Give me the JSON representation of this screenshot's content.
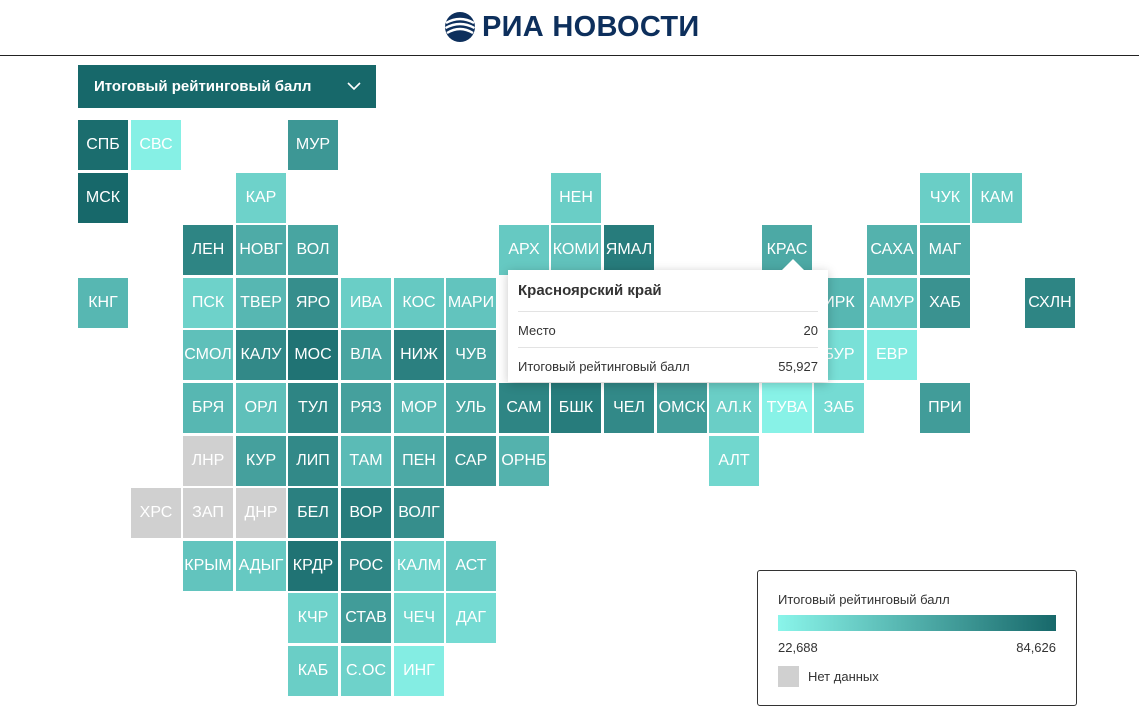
{
  "header": {
    "logo_text": "РИА НОВОСТИ"
  },
  "selector": {
    "label": "Итоговый рейтинговый балл"
  },
  "colors": {
    "scale_low": "#8af5ea",
    "scale_high": "#17686a",
    "no_data": "#d0d0d0",
    "tile_text": "#ffffff",
    "selector_bg": "#17686a",
    "logo_blue": "#0d2f5c"
  },
  "legend": {
    "title": "Итоговый рейтинговый балл",
    "min_label": "22,688",
    "max_label": "84,626",
    "no_data_label": "Нет данных",
    "min_value": 22.688,
    "max_value": 84.626
  },
  "tooltip": {
    "region_name": "Красноярский край",
    "rank_label": "Место",
    "rank_value": "20",
    "score_label": "Итоговый рейтинговый балл",
    "score_value": "55,927"
  },
  "regions": [
    {
      "code": "СПБ",
      "row": 0,
      "col": 0,
      "value": 82.5
    },
    {
      "code": "СВС",
      "row": 0,
      "col": 1,
      "value": 25.0
    },
    {
      "code": "МУР",
      "row": 0,
      "col": 4,
      "value": 64.0
    },
    {
      "code": "МСК",
      "row": 1,
      "col": 0,
      "value": 84.6
    },
    {
      "code": "КАР",
      "row": 1,
      "col": 3,
      "value": 38.0
    },
    {
      "code": "НЕН",
      "row": 1,
      "col": 9,
      "value": 40.0
    },
    {
      "code": "ЧУК",
      "row": 1,
      "col": 16,
      "value": 40.0
    },
    {
      "code": "КАМ",
      "row": 1,
      "col": 17,
      "value": 42.0
    },
    {
      "code": "ЛЕН",
      "row": 2,
      "col": 2,
      "value": 72.0
    },
    {
      "code": "НОВГ",
      "row": 2,
      "col": 3,
      "value": 55.0
    },
    {
      "code": "ВОЛ",
      "row": 2,
      "col": 4,
      "value": 58.0
    },
    {
      "code": "АРХ",
      "row": 2,
      "col": 8,
      "value": 42.0
    },
    {
      "code": "КОМИ",
      "row": 2,
      "col": 9,
      "value": 45.0
    },
    {
      "code": "ЯМАЛ",
      "row": 2,
      "col": 10,
      "value": 76.0
    },
    {
      "code": "КРАС",
      "row": 2,
      "col": 13,
      "value": 55.927
    },
    {
      "code": "САХА",
      "row": 2,
      "col": 15,
      "value": 52.0
    },
    {
      "code": "МАГ",
      "row": 2,
      "col": 16,
      "value": 55.0
    },
    {
      "code": "КНГ",
      "row": 3,
      "col": 0,
      "value": 50.0
    },
    {
      "code": "ПСК",
      "row": 3,
      "col": 2,
      "value": 38.0
    },
    {
      "code": "ТВЕР",
      "row": 3,
      "col": 3,
      "value": 50.0
    },
    {
      "code": "ЯРО",
      "row": 3,
      "col": 4,
      "value": 68.0
    },
    {
      "code": "ИВА",
      "row": 3,
      "col": 5,
      "value": 40.0
    },
    {
      "code": "КОС",
      "row": 3,
      "col": 6,
      "value": 42.0
    },
    {
      "code": "МАРИ",
      "row": 3,
      "col": 7,
      "value": 44.0
    },
    {
      "code": "ИРК",
      "row": 3,
      "col": 14,
      "value": 50.0
    },
    {
      "code": "АМУР",
      "row": 3,
      "col": 15,
      "value": 42.0
    },
    {
      "code": "ХАБ",
      "row": 3,
      "col": 16,
      "value": 66.0
    },
    {
      "code": "СХЛН",
      "row": 3,
      "col": 18,
      "value": 72.0
    },
    {
      "code": "СМОЛ",
      "row": 4,
      "col": 2,
      "value": 46.0
    },
    {
      "code": "КАЛУ",
      "row": 4,
      "col": 3,
      "value": 70.0
    },
    {
      "code": "МОС",
      "row": 4,
      "col": 4,
      "value": 80.0
    },
    {
      "code": "ВЛА",
      "row": 4,
      "col": 5,
      "value": 58.0
    },
    {
      "code": "НИЖ",
      "row": 4,
      "col": 6,
      "value": 74.0
    },
    {
      "code": "ЧУВ",
      "row": 4,
      "col": 7,
      "value": 60.0
    },
    {
      "code": "БУР",
      "row": 4,
      "col": 14,
      "value": 32.0
    },
    {
      "code": "ЕВР",
      "row": 4,
      "col": 15,
      "value": 27.0
    },
    {
      "code": "БРЯ",
      "row": 5,
      "col": 2,
      "value": 50.0
    },
    {
      "code": "ОРЛ",
      "row": 5,
      "col": 3,
      "value": 46.0
    },
    {
      "code": "ТУЛ",
      "row": 5,
      "col": 4,
      "value": 72.0
    },
    {
      "code": "РЯЗ",
      "row": 5,
      "col": 5,
      "value": 60.0
    },
    {
      "code": "МОР",
      "row": 5,
      "col": 6,
      "value": 50.0
    },
    {
      "code": "УЛЬ",
      "row": 5,
      "col": 7,
      "value": 58.0
    },
    {
      "code": "САМ",
      "row": 5,
      "col": 8,
      "value": 72.0
    },
    {
      "code": "БШК",
      "row": 5,
      "col": 9,
      "value": 76.0
    },
    {
      "code": "ЧЕЛ",
      "row": 5,
      "col": 10,
      "value": 70.0
    },
    {
      "code": "ОМСК",
      "row": 5,
      "col": 11,
      "value": 62.0
    },
    {
      "code": "АЛ.К",
      "row": 5,
      "col": 12,
      "value": 40.0
    },
    {
      "code": "ТУВА",
      "row": 5,
      "col": 13,
      "value": 24.0
    },
    {
      "code": "ЗАБ",
      "row": 5,
      "col": 14,
      "value": 34.0
    },
    {
      "code": "ПРИ",
      "row": 5,
      "col": 16,
      "value": 62.0
    },
    {
      "code": "ЛНР",
      "row": 6,
      "col": 2,
      "value": null
    },
    {
      "code": "КУР",
      "row": 6,
      "col": 3,
      "value": 60.0
    },
    {
      "code": "ЛИП",
      "row": 6,
      "col": 4,
      "value": 70.0
    },
    {
      "code": "ТАМ",
      "row": 6,
      "col": 5,
      "value": 48.0
    },
    {
      "code": "ПЕН",
      "row": 6,
      "col": 6,
      "value": 56.0
    },
    {
      "code": "САР",
      "row": 6,
      "col": 7,
      "value": 64.0
    },
    {
      "code": "ОРНБ",
      "row": 6,
      "col": 8,
      "value": 52.0
    },
    {
      "code": "АЛТ",
      "row": 6,
      "col": 12,
      "value": 36.0
    },
    {
      "code": "ХРС",
      "row": 7,
      "col": 1,
      "value": null
    },
    {
      "code": "ЗАП",
      "row": 7,
      "col": 2,
      "value": null
    },
    {
      "code": "ДНР",
      "row": 7,
      "col": 3,
      "value": null
    },
    {
      "code": "БЕЛ",
      "row": 7,
      "col": 4,
      "value": 74.0
    },
    {
      "code": "ВОР",
      "row": 7,
      "col": 5,
      "value": 76.0
    },
    {
      "code": "ВОЛГ",
      "row": 7,
      "col": 6,
      "value": 68.0
    },
    {
      "code": "КРЫМ",
      "row": 8,
      "col": 2,
      "value": 44.0
    },
    {
      "code": "АДЫГ",
      "row": 8,
      "col": 3,
      "value": 42.0
    },
    {
      "code": "КРДР",
      "row": 8,
      "col": 4,
      "value": 80.0
    },
    {
      "code": "РОС",
      "row": 8,
      "col": 5,
      "value": 72.0
    },
    {
      "code": "КАЛМ",
      "row": 8,
      "col": 6,
      "value": 38.0
    },
    {
      "code": "АСТ",
      "row": 8,
      "col": 7,
      "value": 42.0
    },
    {
      "code": "КЧР",
      "row": 9,
      "col": 4,
      "value": 38.0
    },
    {
      "code": "СТАВ",
      "row": 9,
      "col": 5,
      "value": 62.0
    },
    {
      "code": "ЧЕЧ",
      "row": 9,
      "col": 6,
      "value": 36.0
    },
    {
      "code": "ДАГ",
      "row": 9,
      "col": 7,
      "value": 34.0
    },
    {
      "code": "КАБ",
      "row": 10,
      "col": 4,
      "value": 40.0
    },
    {
      "code": "С.ОС",
      "row": 10,
      "col": 5,
      "value": 38.0
    },
    {
      "code": "ИНГ",
      "row": 10,
      "col": 6,
      "value": 26.0
    }
  ]
}
